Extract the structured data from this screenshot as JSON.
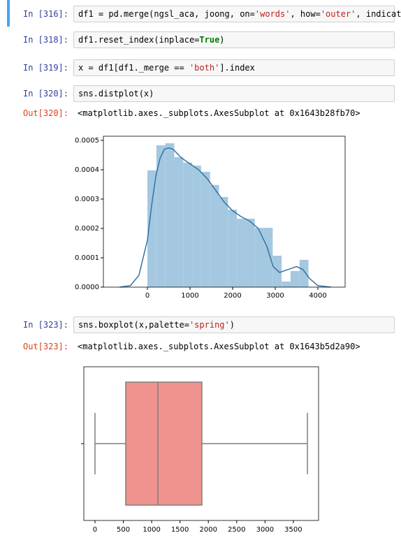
{
  "cells": [
    {
      "prompt": "In [316]:",
      "code": "df1 = pd.merge(ngsl_aca, joong, on='words', how='outer', indicat"
    },
    {
      "prompt": "In [318]:",
      "code": "df1.reset_index(inplace=True)"
    },
    {
      "prompt": "In [319]:",
      "code": "x = df1[df1._merge == 'both'].index"
    },
    {
      "prompt": "In [320]:",
      "code": "sns.distplot(x)",
      "out_prompt": "Out[320]:",
      "out_text": "<matplotlib.axes._subplots.AxesSubplot at 0x1643b28fb70>"
    },
    {
      "prompt": "In [323]:",
      "code": "sns.boxplot(x,palette='spring')",
      "out_prompt": "Out[323]:",
      "out_text": "<matplotlib.axes._subplots.AxesSubplot at 0x1643b5d2a90>"
    }
  ],
  "chart_data": [
    {
      "type": "histogram",
      "bins": [
        0,
        210,
        420,
        630,
        840,
        1050,
        1260,
        1470,
        1680,
        1890,
        2100,
        2310,
        2520,
        2730,
        2940,
        3150,
        3360,
        3570,
        3780
      ],
      "values": [
        0.000398,
        0.000483,
        0.00049,
        0.000443,
        0.000424,
        0.000414,
        0.000393,
        0.000348,
        0.000307,
        0.000264,
        0.000233,
        0.000233,
        0.000202,
        0.000202,
        0.000107,
        1.9e-05,
        5.5e-05,
        9.3e-05
      ],
      "color": "#a5c8e1",
      "kde": {
        "x": [
          -650,
          -400,
          -200,
          0,
          100,
          200,
          300,
          400,
          500,
          600,
          800,
          1000,
          1200,
          1400,
          1600,
          1800,
          2000,
          2200,
          2400,
          2600,
          2800,
          2950,
          3100,
          3300,
          3500,
          3650,
          3800,
          4000,
          4300
        ],
        "values": [
          0,
          5e-06,
          4e-05,
          0.00016,
          0.00028,
          0.00038,
          0.00044,
          0.00047,
          0.000474,
          0.00047,
          0.00044,
          0.00042,
          0.0004,
          0.00037,
          0.00033,
          0.00029,
          0.00026,
          0.00024,
          0.000225,
          0.0002,
          0.00014,
          7e-05,
          5e-05,
          6e-05,
          7e-05,
          6e-05,
          3e-05,
          5e-06,
          0
        ],
        "color": "#3274a1"
      },
      "xlim": [
        -1033,
        4639
      ],
      "xticks": [
        0,
        1000,
        2000,
        3000,
        4000
      ],
      "ylim": [
        0,
        0.000514
      ],
      "yticks": [
        {
          "value": 0,
          "label": "0.0000"
        },
        {
          "value": 0.0001,
          "label": "0.0001"
        },
        {
          "value": 0.0002,
          "label": "0.0002"
        },
        {
          "value": 0.0003,
          "label": "0.0003"
        },
        {
          "value": 0.0004,
          "label": "0.0004"
        },
        {
          "value": 0.0005,
          "label": "0.0005"
        }
      ]
    },
    {
      "type": "box",
      "categories": [
        null
      ],
      "boxes": [
        {
          "min": 0,
          "q1": 542,
          "median": 1110,
          "q3": 1886,
          "max": 3748
        }
      ],
      "color": "#f0928d",
      "edgecolor": "#7f7f7f",
      "xlim": [
        -197,
        3945
      ],
      "xticks": [
        0,
        500,
        1000,
        1500,
        2000,
        2500,
        3000,
        3500
      ]
    }
  ]
}
